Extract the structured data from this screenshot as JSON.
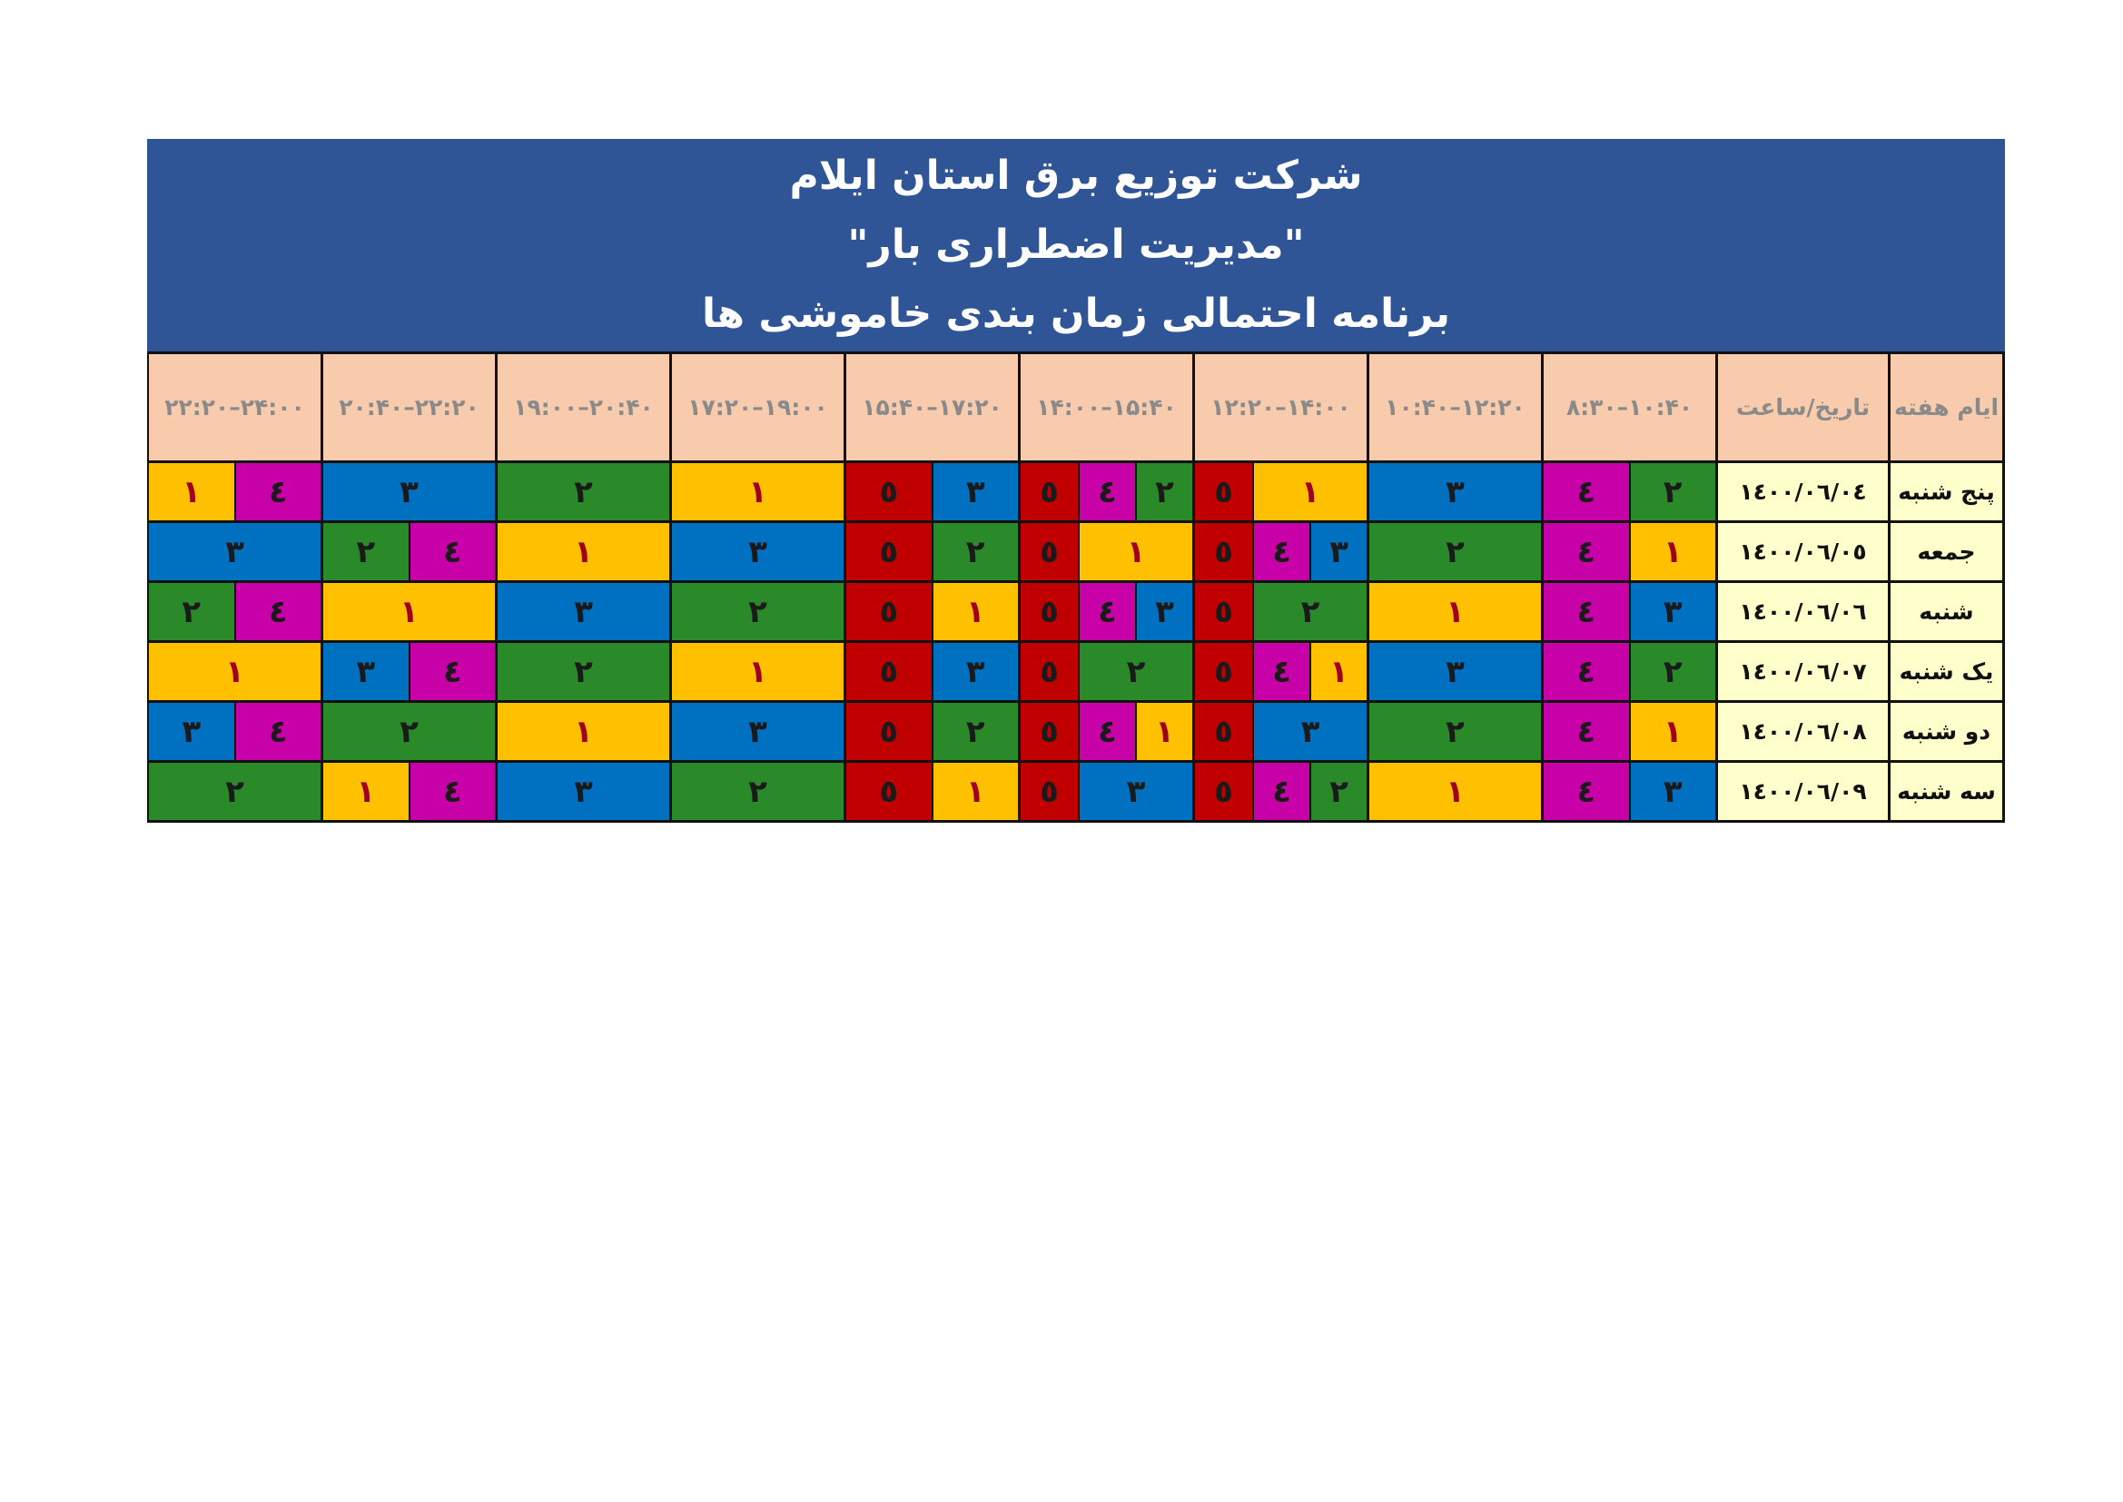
{
  "header": {
    "lines": [
      "شرکت توزیع برق استان ایلام",
      "\"مدیریت اضطراری بار\"",
      "برنامه احتمالی زمان بندی خاموشی ها"
    ]
  },
  "table": {
    "columns": [
      "ایام هفته",
      "تاریخ/ساعت",
      "۸:۳۰–۱۰:۴۰",
      "۱۰:۴۰–۱۲:۲۰",
      "۱۲:۲۰–۱۴:۰۰",
      "۱۴:۰۰–۱۵:۴۰",
      "۱۵:۴۰–۱۷:۲۰",
      "۱۷:۲۰–۱۹:۰۰",
      "۱۹:۰۰–۲۰:۴۰",
      "۲۰:۴۰–۲۲:۲۰",
      "۲۲:۲۰–۲۴:۰۰"
    ],
    "rows": [
      {
        "day": "پنج شنبه",
        "date": "١٤٠٠/٠٦/٠٤",
        "slots": [
          [
            "۲",
            "٤"
          ],
          [
            "۳"
          ],
          [
            "۱",
            "٥"
          ],
          [
            "۲",
            "٤",
            "٥"
          ],
          [
            "۳",
            "٥"
          ],
          [
            "۱"
          ],
          [
            "۲"
          ],
          [
            "۳"
          ],
          [
            "٤",
            "۱"
          ]
        ]
      },
      {
        "day": "جمعه",
        "date": "١٤٠٠/٠٦/٠٥",
        "slots": [
          [
            "۱",
            "٤"
          ],
          [
            "۲"
          ],
          [
            "۳",
            "٤",
            "٥"
          ],
          [
            "۱",
            "٥"
          ],
          [
            "۲",
            "٥"
          ],
          [
            "۳"
          ],
          [
            "۱"
          ],
          [
            "٤",
            "۲"
          ],
          [
            "۳"
          ]
        ]
      },
      {
        "day": "شنبه",
        "date": "١٤٠٠/٠٦/٠٦",
        "slots": [
          [
            "۳",
            "٤"
          ],
          [
            "۱"
          ],
          [
            "۲",
            "٥"
          ],
          [
            "۳",
            "٤",
            "٥"
          ],
          [
            "۱",
            "٥"
          ],
          [
            "۲"
          ],
          [
            "۳"
          ],
          [
            "۱"
          ],
          [
            "٤",
            "۲"
          ]
        ]
      },
      {
        "day": "یک شنبه",
        "date": "١٤٠٠/٠٦/٠٧",
        "slots": [
          [
            "۲",
            "٤"
          ],
          [
            "۳"
          ],
          [
            "۱",
            "٤",
            "٥"
          ],
          [
            "۲",
            "٥"
          ],
          [
            "۳",
            "٥"
          ],
          [
            "۱"
          ],
          [
            "۲"
          ],
          [
            "٤",
            "۳"
          ],
          [
            "۱"
          ]
        ]
      },
      {
        "day": "دو شنبه",
        "date": "١٤٠٠/٠٦/٠٨",
        "slots": [
          [
            "۱",
            "٤"
          ],
          [
            "۲"
          ],
          [
            "۳",
            "٥"
          ],
          [
            "۱",
            "٤",
            "٥"
          ],
          [
            "۲",
            "٥"
          ],
          [
            "۳"
          ],
          [
            "۱"
          ],
          [
            "۲"
          ],
          [
            "٤",
            "۳"
          ]
        ]
      },
      {
        "day": "سه شنبه",
        "date": "١٤٠٠/٠٦/٠٩",
        "slots": [
          [
            "۳",
            "٤"
          ],
          [
            "۱"
          ],
          [
            "۲",
            "٤",
            "٥"
          ],
          [
            "۳",
            "٥"
          ],
          [
            "۱",
            "٥"
          ],
          [
            "۲"
          ],
          [
            "۳"
          ],
          [
            "٤",
            "۱"
          ],
          [
            "۲"
          ]
        ]
      }
    ]
  },
  "colors": {
    "۱": "#ffc000",
    "۲": "#2a8a2a",
    "۳": "#0070c0",
    "٤": "#c800a8",
    "٥": "#c00000"
  }
}
